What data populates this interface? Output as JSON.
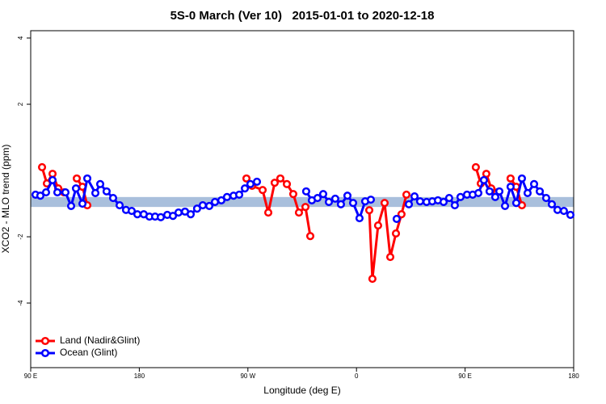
{
  "chart_data": {
    "type": "line",
    "title": "5S-0 March (Ver 10)   2015-01-01 to 2020-12-18",
    "x_label": "Longitude (deg E)",
    "y_label": "XCO2 - MLO trend (ppm)",
    "xlim": [
      90,
      540
    ],
    "ylim": [
      -5.95,
      4.22
    ],
    "xticks": [
      {
        "value": 90,
        "label": "90 E"
      },
      180,
      {
        "value": 270,
        "label": "90 W"
      },
      {
        "value": 360,
        "label": "0"
      },
      {
        "value": 450,
        "label": "90 E"
      },
      {
        "value": 540,
        "label": "180"
      }
    ],
    "yticks": [
      -4,
      -2,
      2,
      4
    ],
    "band": {
      "ylim": [
        -1.1,
        -0.8
      ],
      "color": "#a9bfdc"
    },
    "legend": "bottom-left",
    "series": [
      {
        "name": "Land (Nadir&Glint)",
        "color": "#ff0000",
        "x": [
          99.4,
          103.4,
          108.1,
          112.8,
          117.5,
          null,
          128.2,
          132.9,
          136.9,
          null,
          268.8,
          273.5,
          282.2,
          286.9,
          292.2,
          296.9,
          302.3,
          307.6,
          312.3,
          317.7,
          321.7,
          null,
          370.6,
          373.2,
          377.9,
          383.3,
          388.0,
          392.7,
          397.3,
          401.4,
          null,
          458.9,
          463.0,
          467.6,
          471.7,
          476.4,
          null,
          487.7,
          492.4,
          497.1
        ],
        "values": [
          0.1,
          -0.39,
          -0.1,
          -0.54,
          -0.66,
          null,
          -0.24,
          -0.49,
          -1.05,
          null,
          -0.24,
          -0.46,
          -0.59,
          -1.27,
          -0.37,
          -0.24,
          -0.41,
          -0.71,
          -1.27,
          -1.1,
          -1.98,
          null,
          -1.2,
          -3.27,
          -1.66,
          -0.98,
          -2.61,
          -1.9,
          -1.32,
          -0.73,
          null,
          0.1,
          -0.39,
          -0.1,
          -0.54,
          -0.66,
          null,
          -0.24,
          -0.49,
          -1.05
        ]
      },
      {
        "name": "Ocean (Glint)",
        "color": "#0000ff",
        "x": [
          94.0,
          98.0,
          102.7,
          108.1,
          112.1,
          118.8,
          123.5,
          127.5,
          132.9,
          136.9,
          143.6,
          147.6,
          152.9,
          158.3,
          163.7,
          169.0,
          173.7,
          178.4,
          183.7,
          188.4,
          193.1,
          197.8,
          203.2,
          207.9,
          212.5,
          217.9,
          222.6,
          227.9,
          232.6,
          238.0,
          242.7,
          248.0,
          252.7,
          258.1,
          262.8,
          267.5,
          272.1,
          277.5,
          null,
          318.3,
          323.0,
          327.7,
          332.4,
          337.1,
          342.4,
          347.1,
          352.5,
          357.2,
          362.5,
          367.2,
          371.9,
          null,
          393.3,
          null,
          403.4,
          408.1,
          412.7,
          418.1,
          422.8,
          427.5,
          432.2,
          436.8,
          441.5,
          446.2,
          451.6,
          456.3,
          461.0,
          465.6,
          470.3,
          475.0,
          478.4,
          483.1,
          487.7,
          492.4,
          497.1,
          501.8,
          507.2,
          511.9,
          517.2,
          521.9,
          526.6,
          531.9,
          537.3
        ],
        "values": [
          -0.73,
          -0.76,
          -0.66,
          -0.29,
          -0.66,
          -0.66,
          -1.07,
          -0.54,
          -1.0,
          -0.24,
          -0.68,
          -0.41,
          -0.63,
          -0.83,
          -1.05,
          -1.19,
          -1.22,
          -1.32,
          -1.32,
          -1.39,
          -1.39,
          -1.41,
          -1.34,
          -1.37,
          -1.27,
          -1.24,
          -1.32,
          -1.15,
          -1.05,
          -1.07,
          -0.95,
          -0.9,
          -0.8,
          -0.76,
          -0.73,
          -0.54,
          -0.41,
          -0.34,
          null,
          -0.63,
          -0.9,
          -0.83,
          -0.71,
          -0.95,
          -0.85,
          -1.02,
          -0.76,
          -0.98,
          -1.44,
          -0.93,
          -0.88,
          null,
          -1.46,
          null,
          -1.02,
          -0.78,
          -0.93,
          -0.95,
          -0.93,
          -0.9,
          -0.95,
          -0.83,
          -1.05,
          -0.8,
          -0.73,
          -0.73,
          -0.68,
          -0.29,
          -0.63,
          -0.8,
          -0.63,
          -1.07,
          -0.49,
          -0.98,
          -0.24,
          -0.68,
          -0.41,
          -0.63,
          -0.83,
          -1.02,
          -1.19,
          -1.22,
          -1.34
        ]
      }
    ]
  }
}
